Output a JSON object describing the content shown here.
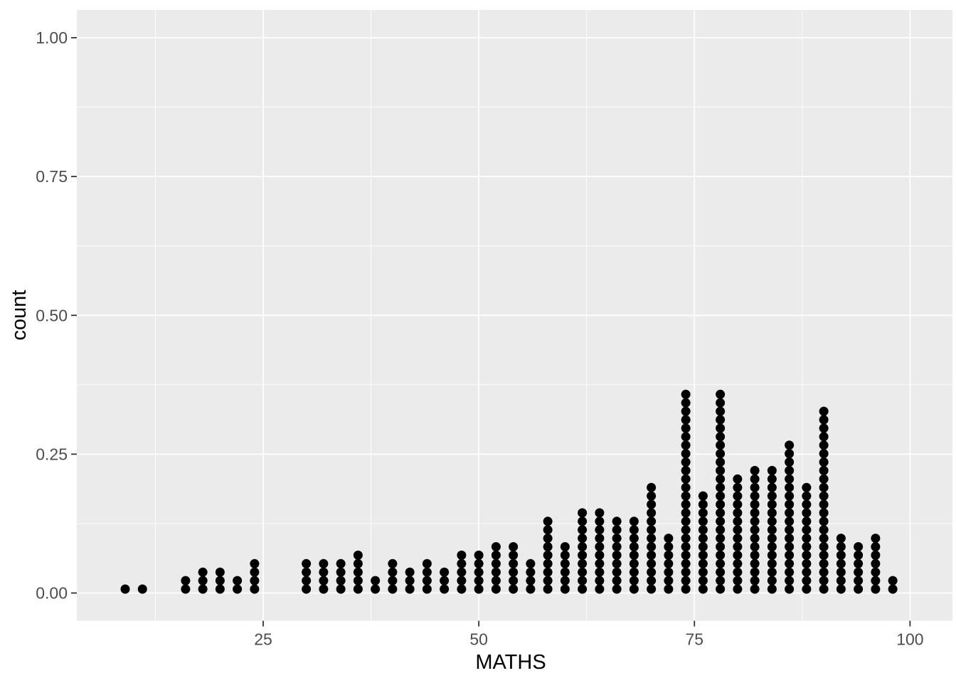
{
  "chart_data": {
    "type": "dotplot",
    "title": "",
    "xlabel": "MATHS",
    "ylabel": "count",
    "x_tick_values": [
      25,
      50,
      75,
      100
    ],
    "x_tick_labels": [
      "25",
      "50",
      "75",
      "100"
    ],
    "y_tick_values": [
      0.0,
      0.25,
      0.5,
      0.75,
      1.0
    ],
    "y_tick_labels": [
      "0.00",
      "0.25",
      "0.50",
      "0.75",
      "1.00"
    ],
    "ylim": [
      0,
      1
    ],
    "grid": true,
    "legend_position": "none",
    "dot_unit_count": 0.0152,
    "stacks": [
      {
        "x": 9,
        "n": 1
      },
      {
        "x": 11,
        "n": 1
      },
      {
        "x": 16,
        "n": 2
      },
      {
        "x": 18,
        "n": 3
      },
      {
        "x": 20,
        "n": 3
      },
      {
        "x": 22,
        "n": 2
      },
      {
        "x": 24,
        "n": 4
      },
      {
        "x": 30,
        "n": 4
      },
      {
        "x": 32,
        "n": 4
      },
      {
        "x": 34,
        "n": 4
      },
      {
        "x": 36,
        "n": 5
      },
      {
        "x": 38,
        "n": 2
      },
      {
        "x": 40,
        "n": 4
      },
      {
        "x": 42,
        "n": 3
      },
      {
        "x": 44,
        "n": 4
      },
      {
        "x": 46,
        "n": 3
      },
      {
        "x": 48,
        "n": 5
      },
      {
        "x": 50,
        "n": 5
      },
      {
        "x": 52,
        "n": 6
      },
      {
        "x": 54,
        "n": 6
      },
      {
        "x": 56,
        "n": 4
      },
      {
        "x": 58,
        "n": 9
      },
      {
        "x": 60,
        "n": 6
      },
      {
        "x": 62,
        "n": 10
      },
      {
        "x": 64,
        "n": 10
      },
      {
        "x": 66,
        "n": 9
      },
      {
        "x": 68,
        "n": 9
      },
      {
        "x": 70,
        "n": 13
      },
      {
        "x": 72,
        "n": 7
      },
      {
        "x": 74,
        "n": 24
      },
      {
        "x": 76,
        "n": 12
      },
      {
        "x": 78,
        "n": 24
      },
      {
        "x": 80,
        "n": 14
      },
      {
        "x": 82,
        "n": 15
      },
      {
        "x": 84,
        "n": 15
      },
      {
        "x": 86,
        "n": 18
      },
      {
        "x": 88,
        "n": 13
      },
      {
        "x": 90,
        "n": 22
      },
      {
        "x": 92,
        "n": 7
      },
      {
        "x": 94,
        "n": 6
      },
      {
        "x": 96,
        "n": 7
      },
      {
        "x": 98,
        "n": 2
      }
    ],
    "colors": {
      "panel_background": "#EBEBEB",
      "grid_major": "#FFFFFF",
      "grid_minor": "#FFFFFF",
      "dot": "#000000",
      "tick_label": "#4D4D4D",
      "axis_title": "#000000",
      "tick_mark": "#333333",
      "page_background": "#FFFFFF"
    }
  }
}
